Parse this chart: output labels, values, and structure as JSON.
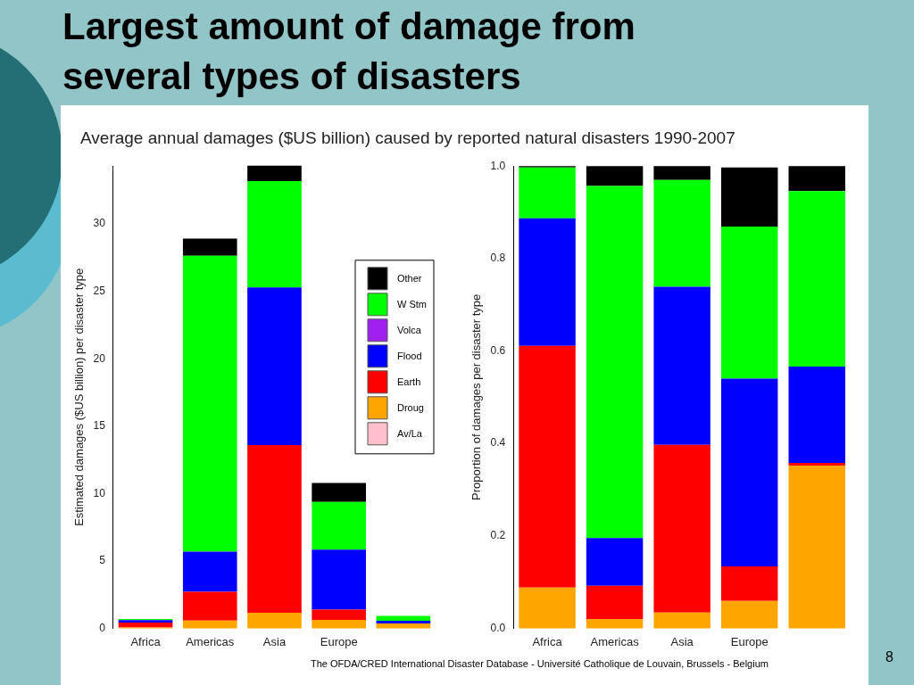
{
  "chart_data": [
    {
      "type": "bar",
      "title": "Largest amount of damage from several types of disasters",
      "subtitle": "Average annual damages ($US billion) caused by reported natural disasters 1990-2007",
      "ylabel": "Estimated damages ($US billion) per disaster type",
      "categories": [
        "Africa",
        "Americas",
        "Asia",
        "Europe",
        null
      ],
      "stacked": true,
      "legend": "right",
      "ylim": [
        0,
        34.3
      ],
      "yticks": [
        0,
        5,
        10,
        15,
        20,
        25,
        30
      ],
      "annotations": [
        "The OFDA/CRED International Disaster Database - Université Catholique de Louvain, Brussels - Belgium",
        "8"
      ],
      "series": [
        {
          "name": "Av/La",
          "color": "#ffc0cb",
          "values": [
            0,
            0,
            0,
            null,
            0
          ]
        },
        {
          "name": "Droug",
          "color": "#ffa500",
          "values": [
            0.06,
            0.58,
            1.15,
            0.62,
            0.35
          ]
        },
        {
          "name": "Earth",
          "color": "#ff0000",
          "values": [
            0.36,
            2.12,
            12.44,
            0.76,
            null
          ]
        },
        {
          "name": "Flood",
          "color": "#0000ff",
          "values": [
            0.19,
            2.99,
            11.71,
            4.45,
            0.2
          ]
        },
        {
          "name": "Volca",
          "color": "#a020f0",
          "values": [
            0,
            0,
            0,
            0,
            0
          ]
        },
        {
          "name": "W Stm",
          "color": "#00ff00",
          "values": [
            0.08,
            21.96,
            7.88,
            3.55,
            0.37
          ]
        },
        {
          "name": "Other",
          "color": "#000000",
          "values": [
            0,
            1.27,
            1.15,
            1.4,
            null
          ]
        }
      ]
    },
    {
      "type": "bar",
      "ylabel": "Proportion of damages per disaster type",
      "categories": [
        "Africa",
        "Americas",
        "Asia",
        "Europe",
        null
      ],
      "stacked": true,
      "ylim": [
        0,
        1
      ],
      "yticks": [
        {
          "value": 0,
          "label": "0.0"
        },
        {
          "value": 0.2,
          "label": "0.2"
        },
        {
          "value": 0.4,
          "label": "0.4"
        },
        {
          "value": 0.6,
          "label": "0.6"
        },
        {
          "value": 0.8,
          "label": "0.8"
        },
        {
          "value": 1,
          "label": "1.0"
        }
      ],
      "series": [
        {
          "color": "#ffc0cb",
          "values": [
            0,
            0,
            0,
            null,
            0
          ]
        },
        {
          "color": "#ffa500",
          "values": [
            0.088,
            0.02,
            0.034,
            0.059,
            0.352
          ]
        },
        {
          "color": "#ff0000",
          "values": [
            0.523,
            0.072,
            0.363,
            0.075,
            0.006
          ]
        },
        {
          "color": "#0000ff",
          "values": [
            0.276,
            0.103,
            0.342,
            0.406,
            0.208
          ]
        },
        {
          "color": "#a020f0",
          "values": [
            0,
            0,
            0,
            0,
            0
          ]
        },
        {
          "color": "#00ff00",
          "values": [
            0.11,
            0.762,
            0.231,
            0.329,
            0.38
          ]
        },
        {
          "color": "#000000",
          "values": [
            0.003,
            0.043,
            0.03,
            0.128,
            0.054
          ]
        }
      ]
    }
  ]
}
